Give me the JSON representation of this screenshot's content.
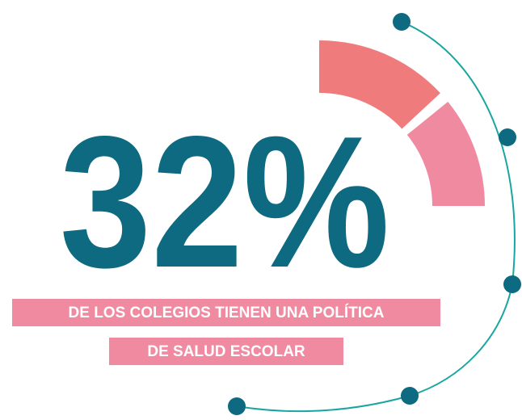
{
  "headline": "32%",
  "caption": {
    "line1": "DE LOS COLEGIOS TIENEN UNA POLÍTICA",
    "line2": "DE SALUD ESCOLAR"
  }
}
